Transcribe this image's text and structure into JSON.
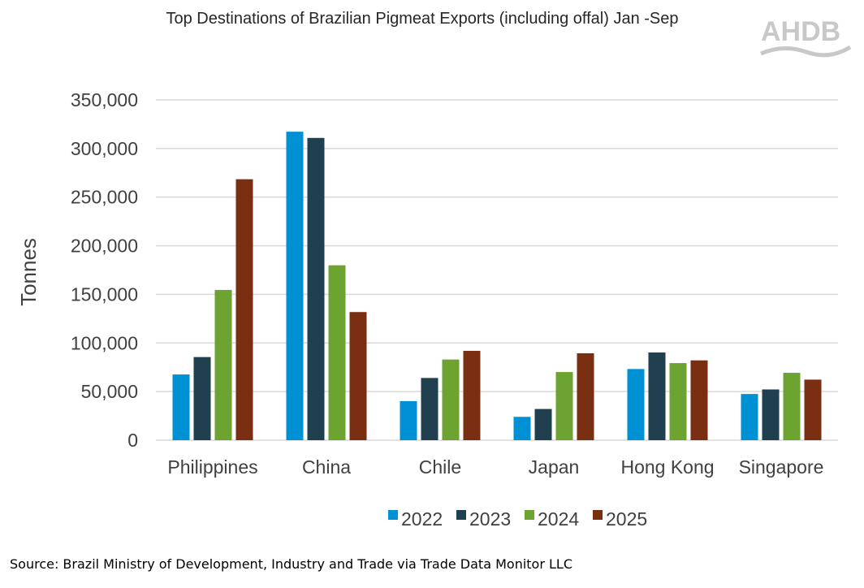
{
  "title": "Top Destinations of Brazilian Pigmeat Exports (including offal) Jan -Sep",
  "logo_text": "AHDB",
  "source": "Source: Brazil Ministry of Development, Industry and Trade via Trade Data Monitor LLC",
  "chart_data": {
    "type": "bar",
    "title": "Top Destinations of Brazilian Pigmeat Exports (including offal) Jan -Sep",
    "xlabel": "",
    "ylabel": "Tonnes",
    "ylim": [
      0,
      350000
    ],
    "yticks": [
      0,
      50000,
      100000,
      150000,
      200000,
      250000,
      300000,
      350000
    ],
    "ytick_labels": [
      "0",
      "50,000",
      "100,000",
      "150,000",
      "200,000",
      "250,000",
      "300,000",
      "350,000"
    ],
    "grid": true,
    "legend": "bottom",
    "categories": [
      "Philippines",
      "China",
      "Chile",
      "Japan",
      "Hong Kong",
      "Singapore"
    ],
    "series": [
      {
        "name": "2022",
        "color": "#0090D4",
        "values": [
          67600,
          317300,
          40200,
          24000,
          73200,
          47500
        ]
      },
      {
        "name": "2023",
        "color": "#20404F",
        "values": [
          85500,
          310900,
          64000,
          32100,
          90200,
          52200
        ]
      },
      {
        "name": "2024",
        "color": "#6DA331",
        "values": [
          154500,
          179900,
          83000,
          70100,
          79300,
          69300
        ]
      },
      {
        "name": "2025",
        "color": "#7A2F12",
        "values": [
          268400,
          131800,
          91900,
          89400,
          82100,
          62300
        ]
      }
    ]
  }
}
